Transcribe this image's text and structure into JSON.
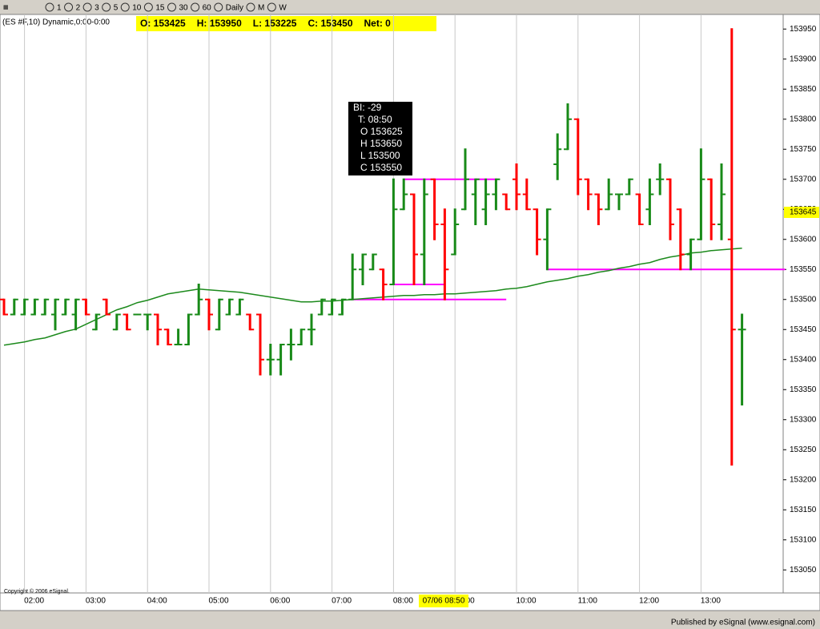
{
  "toolbar": [
    "1",
    "2",
    "3",
    "5",
    "10",
    "15",
    "30",
    "60",
    "Daily",
    "M",
    "W"
  ],
  "chart_data": {
    "type": "ohlc",
    "title": "(ES #F,10) Dynamic,0:00-0:00",
    "quote": [
      "O: 153425",
      "H: 153950",
      "L: 153225",
      "C: 153450",
      "Net: 0"
    ],
    "categories": [
      null,
      null,
      "02:00",
      null,
      null,
      null,
      null,
      null,
      "03:00",
      null,
      null,
      null,
      null,
      null,
      "04:00",
      null,
      null,
      null,
      null,
      null,
      "05:00",
      null,
      null,
      null,
      null,
      null,
      "06:00",
      null,
      null,
      null,
      null,
      null,
      "07:00",
      null,
      null,
      null,
      null,
      null,
      "08:00",
      null,
      null,
      null,
      null,
      null,
      "09:00",
      null,
      null,
      null,
      null,
      null,
      "10:00",
      null,
      null,
      null,
      null,
      null,
      "11:00",
      null,
      null,
      null,
      null,
      null,
      "12:00",
      null,
      null,
      null,
      null,
      null,
      "13:00",
      null,
      null,
      null,
      null
    ],
    "open": [
      153500,
      153475,
      153475,
      153475,
      153475,
      153475,
      153475,
      153475,
      153500,
      153450,
      153500,
      153450,
      153475,
      153475,
      153475,
      153475,
      153450,
      153425,
      153425,
      153475,
      153500,
      153450,
      153475,
      153475,
      153475,
      153475,
      153400,
      153400,
      153425,
      153425,
      153450,
      153475,
      153475,
      153475,
      153500,
      153550,
      153550,
      153550,
      153525,
      153650,
      153675,
      153575,
      153700,
      153625,
      153575,
      153650,
      153675,
      153650,
      153675,
      153675,
      153700,
      153675,
      153650,
      153600,
      153725,
      153750,
      153800,
      153700,
      153675,
      153650,
      153675,
      153675,
      153675,
      153650,
      153700,
      153700,
      153650,
      153575,
      153600,
      153700,
      153625,
      153600,
      153450
    ],
    "high": [
      153500,
      153500,
      153500,
      153500,
      153500,
      153500,
      153500,
      153500,
      153500,
      153475,
      153500,
      153475,
      153475,
      153475,
      153475,
      153475,
      153450,
      153450,
      153475,
      153525,
      153500,
      153500,
      153500,
      153500,
      153475,
      153475,
      153425,
      153425,
      153450,
      153450,
      153475,
      153500,
      153500,
      153500,
      153575,
      153575,
      153575,
      153550,
      153700,
      153700,
      153675,
      153700,
      153700,
      153650,
      153650,
      153750,
      153700,
      153700,
      153700,
      153675,
      153725,
      153700,
      153650,
      153650,
      153775,
      153825,
      153800,
      153700,
      153675,
      153700,
      153675,
      153700,
      153675,
      153700,
      153725,
      153700,
      153650,
      153600,
      153750,
      153700,
      153725,
      153950,
      153475
    ],
    "low": [
      153475,
      153475,
      153475,
      153475,
      153475,
      153450,
      153475,
      153450,
      153475,
      153450,
      153475,
      153450,
      153450,
      153475,
      153450,
      153425,
      153425,
      153425,
      153425,
      153475,
      153450,
      153450,
      153475,
      153475,
      153450,
      153375,
      153375,
      153375,
      153400,
      153425,
      153425,
      153475,
      153475,
      153475,
      153500,
      153525,
      153550,
      153500,
      153525,
      153650,
      153525,
      153525,
      153600,
      153500,
      153575,
      153650,
      153625,
      153625,
      153650,
      153650,
      153650,
      153650,
      153575,
      153550,
      153700,
      153750,
      153675,
      153650,
      153625,
      153650,
      153650,
      153675,
      153625,
      153625,
      153675,
      153600,
      153550,
      153550,
      153600,
      153600,
      153600,
      153225,
      153325
    ],
    "close": [
      153475,
      153500,
      153500,
      153500,
      153500,
      153500,
      153500,
      153500,
      153475,
      153475,
      153475,
      153475,
      153450,
      153475,
      153475,
      153450,
      153425,
      153425,
      153475,
      153500,
      153475,
      153500,
      153500,
      153500,
      153450,
      153400,
      153400,
      153425,
      153425,
      153450,
      153450,
      153500,
      153500,
      153500,
      153550,
      153575,
      153575,
      153525,
      153650,
      153675,
      153575,
      153675,
      153625,
      153550,
      153625,
      153700,
      153700,
      153675,
      153700,
      153650,
      153675,
      153650,
      153600,
      153650,
      153750,
      153800,
      153700,
      153675,
      153650,
      153675,
      153675,
      153700,
      153625,
      153675,
      153700,
      153625,
      153575,
      153600,
      153700,
      153625,
      153675,
      153450,
      153450
    ],
    "up_color": "#188a18",
    "down_color": "#ff0000",
    "series": [
      {
        "name": "MA",
        "color": "#1c8a1c",
        "values": [
          153424,
          153426.7,
          153429.3,
          153433.3,
          153436,
          153441.3,
          153446.7,
          153450.7,
          153458.7,
          153466.7,
          153474.7,
          153482.7,
          153488,
          153494.7,
          153498.7,
          153504,
          153509.3,
          153512,
          153514.7,
          153517.3,
          153516,
          153514.7,
          153513.3,
          153512,
          153509.3,
          153506.7,
          153504,
          153501.3,
          153498.7,
          153496,
          153496,
          153497.3,
          153497.3,
          153498.7,
          153500,
          153501.3,
          153502.7,
          153504,
          153505.3,
          153506.7,
          153506.7,
          153508,
          153508,
          153509.3,
          153509.3,
          153510.7,
          153512,
          153513.3,
          153514.7,
          153517.3,
          153518.7,
          153521.3,
          153525.3,
          153529.3,
          153532,
          153534.7,
          153538.7,
          153541.3,
          153545.3,
          153548,
          153552,
          153554.7,
          153558.7,
          153561.3,
          153566.7,
          153570.7,
          153573.3,
          153577.3,
          153578.7,
          153581.3,
          153582.7,
          153584,
          153585.3
        ]
      }
    ],
    "levels": [
      153700,
      153525,
      153500,
      153550
    ],
    "level_color": "#ff00ff",
    "ylim": [
      153013,
      153973
    ],
    "yticks": [
      153050,
      153100,
      153150,
      153200,
      153250,
      153300,
      153350,
      153400,
      153450,
      153500,
      153550,
      153600,
      153650,
      153700,
      153750,
      153800,
      153850,
      153900,
      153950
    ],
    "last_price": 153645,
    "cursor_label": "07/06 08:50",
    "tooltip": [
      "BI: -29",
      "T: 08:50",
      "O 153625",
      "H 153650",
      "L 153500",
      "C 153550"
    ],
    "grid": "x"
  },
  "copyright": "Copyright © 2006 eSignal.",
  "footer": "Published by eSignal (www.esignal.com)"
}
